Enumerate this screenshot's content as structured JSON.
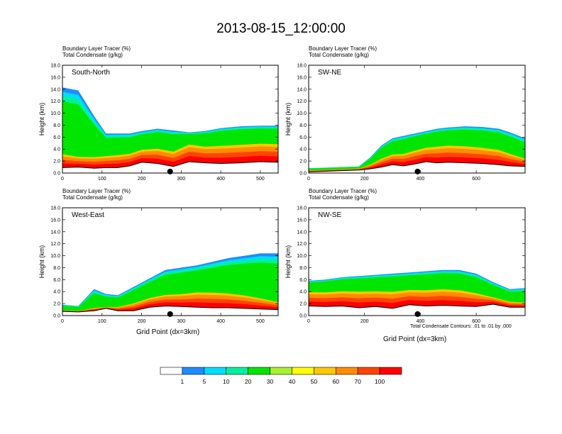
{
  "figure": {
    "title": "2013-08-15_12:00:00",
    "footnote": "Total Condensate Contours: .01 to .01 by .000",
    "x_axis_label": "Grid Point (dx=3km)"
  },
  "colorbar": {
    "labels": [
      "1",
      "5",
      "10",
      "20",
      "30",
      "40",
      "50",
      "60",
      "70",
      "100"
    ],
    "colors": [
      "#ffffff",
      "#1e8cff",
      "#00ddff",
      "#00f0a0",
      "#00e600",
      "#a8f030",
      "#ffff00",
      "#ffc800",
      "#ff8c00",
      "#ff4400",
      "#ff0000"
    ]
  },
  "chart_data": [
    {
      "type": "heatmap",
      "panel_label": "South-North",
      "header": [
        "Boundary Layer Tracer   (%)",
        "Total Condensate   (g/kg)"
      ],
      "ylabel": "Height (km)",
      "xlabel": "",
      "xlim": [
        0,
        545
      ],
      "ylim": [
        0,
        18
      ],
      "xticks": [
        0,
        100,
        200,
        300,
        400,
        500
      ],
      "yticks": [
        "0.0",
        "2.0",
        "4.0",
        "6.0",
        "8.0",
        "10.0",
        "12.0",
        "14.0",
        "16.0",
        "18.0"
      ],
      "marker_x": 272,
      "x": [
        0,
        40,
        80,
        110,
        140,
        170,
        200,
        240,
        280,
        320,
        360,
        400,
        450,
        500,
        545
      ],
      "terrain": [
        0.9,
        1.0,
        0.8,
        0.9,
        0.9,
        1.2,
        1.8,
        1.6,
        1.1,
        1.9,
        1.7,
        1.6,
        1.7,
        1.9,
        1.8
      ],
      "top": [
        14.3,
        13.8,
        9.5,
        6.6,
        6.6,
        6.6,
        7.0,
        7.4,
        7.1,
        6.8,
        7.0,
        7.5,
        7.8,
        7.9,
        7.9
      ],
      "core_top": [
        3.8,
        3.2,
        3.2,
        3.4,
        3.6,
        3.8,
        4.5,
        4.8,
        4.3,
        5.6,
        5.2,
        5.4,
        5.6,
        5.8,
        5.7
      ]
    },
    {
      "type": "heatmap",
      "panel_label": "SW-NE",
      "header": [
        "Boundary Layer Tracer   (%)",
        "Total Condensate   (g/kg)"
      ],
      "ylabel": "Height (km)",
      "xlabel": "",
      "xlim": [
        0,
        775
      ],
      "ylim": [
        0,
        18
      ],
      "xticks": [
        0,
        200,
        400,
        600
      ],
      "yticks": [
        "0.0",
        "2.0",
        "4.0",
        "6.0",
        "8.0",
        "10.0",
        "12.0",
        "14.0",
        "16.0",
        "18.0"
      ],
      "marker_x": 390,
      "x": [
        0,
        60,
        120,
        180,
        220,
        260,
        300,
        340,
        380,
        420,
        460,
        500,
        560,
        620,
        680,
        720,
        775
      ],
      "terrain": [
        0.2,
        0.3,
        0.4,
        0.5,
        0.7,
        1.0,
        1.4,
        1.2,
        1.5,
        1.9,
        1.7,
        1.8,
        1.7,
        1.6,
        1.4,
        1.2,
        1.1
      ],
      "top": [
        0.8,
        0.9,
        1.0,
        1.1,
        2.6,
        4.6,
        5.8,
        6.2,
        6.6,
        7.0,
        7.4,
        7.6,
        7.8,
        7.7,
        7.4,
        6.8,
        5.8
      ],
      "core_top": [
        0.5,
        0.6,
        0.7,
        0.8,
        1.6,
        2.8,
        3.6,
        3.8,
        4.4,
        4.9,
        5.2,
        5.4,
        5.3,
        5.0,
        4.6,
        3.8,
        2.8
      ]
    },
    {
      "type": "heatmap",
      "panel_label": "West-East",
      "header": [
        "Boundary Layer Tracer   (%)",
        "Total Condensate   (g/kg)"
      ],
      "ylabel": "Height (km)",
      "xlabel": "Grid Point (dx=3km)",
      "xlim": [
        0,
        545
      ],
      "ylim": [
        0,
        18
      ],
      "xticks": [
        0,
        100,
        200,
        300,
        400,
        500
      ],
      "yticks": [
        "0.0",
        "2.0",
        "4.0",
        "6.0",
        "8.0",
        "10.0",
        "12.0",
        "14.0",
        "16.0",
        "18.0"
      ],
      "marker_x": 272,
      "x": [
        0,
        40,
        80,
        110,
        140,
        180,
        220,
        260,
        300,
        340,
        380,
        420,
        460,
        500,
        545
      ],
      "terrain": [
        0.7,
        0.6,
        0.8,
        1.2,
        0.8,
        0.8,
        1.4,
        1.6,
        1.5,
        1.4,
        1.3,
        1.3,
        1.2,
        1.1,
        1.0
      ],
      "top": [
        1.8,
        1.6,
        4.4,
        3.6,
        3.4,
        4.8,
        6.2,
        7.6,
        8.0,
        8.4,
        9.0,
        9.6,
        10.0,
        10.4,
        10.4
      ],
      "core_top": [
        0.9,
        0.8,
        1.4,
        1.5,
        1.6,
        2.4,
        3.4,
        4.0,
        4.2,
        4.6,
        4.6,
        4.4,
        4.0,
        3.4,
        2.6
      ]
    },
    {
      "type": "heatmap",
      "panel_label": "NW-SE",
      "header": [
        "Boundary Layer Tracer   (%)",
        "Total Condensate   (g/kg)"
      ],
      "ylabel": "Height (km)",
      "xlabel": "Grid Point (dx=3km)",
      "xlim": [
        0,
        775
      ],
      "ylim": [
        0,
        18
      ],
      "xticks": [
        0,
        200,
        400,
        600
      ],
      "yticks": [
        "0.0",
        "2.0",
        "4.0",
        "6.0",
        "8.0",
        "10.0",
        "12.0",
        "14.0",
        "16.0",
        "18.0"
      ],
      "marker_x": 390,
      "x": [
        0,
        60,
        120,
        180,
        240,
        300,
        360,
        420,
        480,
        540,
        600,
        660,
        720,
        775
      ],
      "terrain": [
        1.6,
        1.5,
        1.6,
        1.3,
        1.5,
        1.2,
        1.8,
        1.6,
        1.7,
        1.6,
        1.5,
        1.9,
        1.4,
        1.4
      ],
      "top": [
        5.8,
        6.0,
        6.4,
        6.6,
        6.8,
        7.0,
        7.2,
        7.4,
        7.6,
        7.6,
        7.0,
        5.6,
        4.4,
        4.6
      ],
      "core_top": [
        4.6,
        4.6,
        4.8,
        4.8,
        4.8,
        4.8,
        5.0,
        5.0,
        5.2,
        5.0,
        4.4,
        3.4,
        2.6,
        2.4
      ]
    }
  ]
}
